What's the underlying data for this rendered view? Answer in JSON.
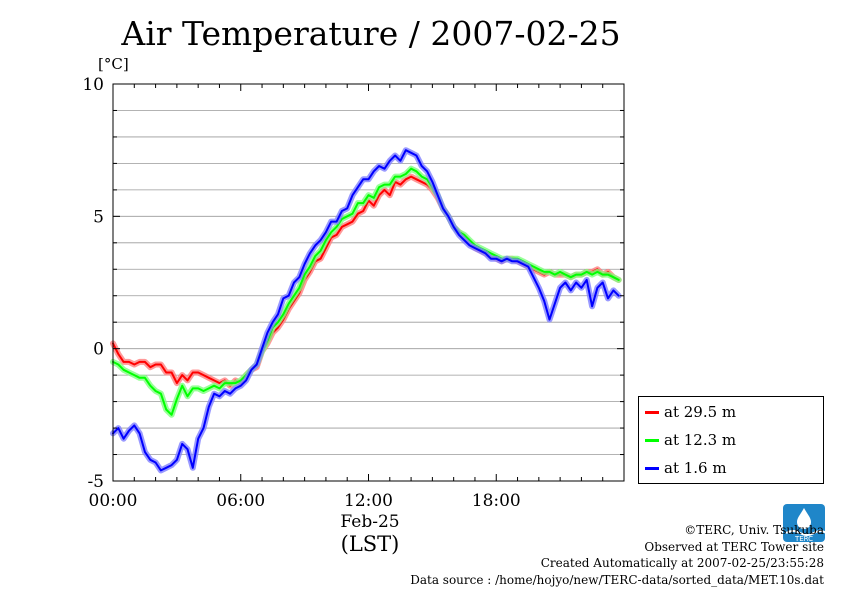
{
  "title": "Air Temperature / 2007-02-25",
  "unit": "[°C]",
  "x_date_label": "Feb-25",
  "x_zone_label": "(LST)",
  "credits": {
    "copyright": "©TERC, Univ. Tsukuba",
    "site": "Observed at TERC Tower site",
    "created": "Created Automatically at 2007-02-25/23:55:28",
    "source": "Data source : /home/hojyo/new/TERC-data/sorted_data/MET.10s.dat"
  },
  "logo_text": "TERC",
  "chart_data": {
    "type": "line",
    "title": "Air Temperature / 2007-02-25",
    "ylabel": "[°C]",
    "xlabel": "Feb-25 (LST)",
    "ylim": [
      -5,
      10
    ],
    "xlim": [
      0,
      24
    ],
    "grid": true,
    "legend_position": "right-bottom-outside",
    "y_ticks": [
      {
        "value": 10,
        "label": "10"
      },
      {
        "value": 5,
        "label": "5"
      },
      {
        "value": 0,
        "label": "0"
      },
      {
        "value": -5,
        "label": "-5"
      }
    ],
    "x_ticks": [
      {
        "value": 0,
        "label": "00:00"
      },
      {
        "value": 6,
        "label": "06:00"
      },
      {
        "value": 12,
        "label": "12:00"
      },
      {
        "value": 18,
        "label": "18:00"
      }
    ],
    "series": [
      {
        "name": "at 29.5 m",
        "color": "#ff0000",
        "x": [
          0.0,
          0.25,
          0.5,
          0.75,
          1.0,
          1.25,
          1.5,
          1.75,
          2.0,
          2.25,
          2.5,
          2.75,
          3.0,
          3.25,
          3.5,
          3.75,
          4.0,
          4.25,
          4.5,
          4.75,
          5.0,
          5.25,
          5.5,
          5.75,
          6.0,
          6.25,
          6.5,
          6.75,
          7.0,
          7.25,
          7.5,
          7.75,
          8.0,
          8.25,
          8.5,
          8.75,
          9.0,
          9.25,
          9.5,
          9.75,
          10.0,
          10.25,
          10.5,
          10.75,
          11.0,
          11.25,
          11.5,
          11.75,
          12.0,
          12.25,
          12.5,
          12.75,
          13.0,
          13.25,
          13.5,
          13.75,
          14.0,
          14.25,
          14.5,
          14.75,
          15.0,
          15.25,
          15.5,
          15.75,
          16.0,
          16.25,
          16.5,
          16.75,
          17.0,
          17.25,
          17.5,
          17.75,
          18.0,
          18.25,
          18.5,
          18.75,
          19.0,
          19.25,
          19.5,
          19.75,
          20.0,
          20.25,
          20.5,
          20.75,
          21.0,
          21.25,
          21.5,
          21.75,
          22.0,
          22.25,
          22.5,
          22.75,
          23.0,
          23.25,
          23.5,
          23.75
        ],
        "values": [
          0.2,
          -0.2,
          -0.5,
          -0.5,
          -0.6,
          -0.5,
          -0.5,
          -0.7,
          -0.6,
          -0.6,
          -0.9,
          -0.9,
          -1.3,
          -1.0,
          -1.2,
          -0.9,
          -0.9,
          -1.0,
          -1.1,
          -1.2,
          -1.3,
          -1.2,
          -1.4,
          -1.2,
          -1.3,
          -1.0,
          -0.8,
          -0.7,
          -0.1,
          0.2,
          0.6,
          0.8,
          1.1,
          1.5,
          1.8,
          2.1,
          2.6,
          2.9,
          3.3,
          3.4,
          3.8,
          4.2,
          4.3,
          4.6,
          4.7,
          4.8,
          5.1,
          5.2,
          5.6,
          5.4,
          5.8,
          6.0,
          5.8,
          6.3,
          6.2,
          6.4,
          6.5,
          6.4,
          6.3,
          6.2,
          6.0,
          5.7,
          5.3,
          5.0,
          4.6,
          4.4,
          4.2,
          4.0,
          3.8,
          3.7,
          3.6,
          3.5,
          3.4,
          3.3,
          3.4,
          3.4,
          3.3,
          3.2,
          3.1,
          3.0,
          2.9,
          2.8,
          2.9,
          2.8,
          2.8,
          2.8,
          2.7,
          2.8,
          2.8,
          2.9,
          2.9,
          3.0,
          2.8,
          2.9,
          2.7,
          2.6
        ]
      },
      {
        "name": "at 12.3 m",
        "color": "#00ff00",
        "x": [
          0.0,
          0.25,
          0.5,
          0.75,
          1.0,
          1.25,
          1.5,
          1.75,
          2.0,
          2.25,
          2.5,
          2.75,
          3.0,
          3.25,
          3.5,
          3.75,
          4.0,
          4.25,
          4.5,
          4.75,
          5.0,
          5.25,
          5.5,
          5.75,
          6.0,
          6.25,
          6.5,
          6.75,
          7.0,
          7.25,
          7.5,
          7.75,
          8.0,
          8.25,
          8.5,
          8.75,
          9.0,
          9.25,
          9.5,
          9.75,
          10.0,
          10.25,
          10.5,
          10.75,
          11.0,
          11.25,
          11.5,
          11.75,
          12.0,
          12.25,
          12.5,
          12.75,
          13.0,
          13.25,
          13.5,
          13.75,
          14.0,
          14.25,
          14.5,
          14.75,
          15.0,
          15.25,
          15.5,
          15.75,
          16.0,
          16.25,
          16.5,
          16.75,
          17.0,
          17.25,
          17.5,
          17.75,
          18.0,
          18.25,
          18.5,
          18.75,
          19.0,
          19.25,
          19.5,
          19.75,
          20.0,
          20.25,
          20.5,
          20.75,
          21.0,
          21.25,
          21.5,
          21.75,
          22.0,
          22.25,
          22.5,
          22.75,
          23.0,
          23.25,
          23.5,
          23.75
        ],
        "values": [
          -0.5,
          -0.6,
          -0.8,
          -0.9,
          -1.0,
          -1.1,
          -1.1,
          -1.4,
          -1.6,
          -1.7,
          -2.3,
          -2.5,
          -1.9,
          -1.4,
          -1.8,
          -1.5,
          -1.5,
          -1.6,
          -1.5,
          -1.4,
          -1.5,
          -1.3,
          -1.3,
          -1.3,
          -1.2,
          -1.0,
          -0.8,
          -0.6,
          -0.1,
          0.3,
          0.8,
          1.0,
          1.3,
          1.7,
          2.0,
          2.3,
          2.8,
          3.1,
          3.5,
          3.7,
          4.1,
          4.4,
          4.6,
          4.9,
          5.0,
          5.1,
          5.5,
          5.5,
          5.8,
          5.7,
          6.1,
          6.2,
          6.2,
          6.5,
          6.5,
          6.6,
          6.8,
          6.7,
          6.5,
          6.4,
          6.1,
          5.8,
          5.3,
          5.0,
          4.6,
          4.4,
          4.3,
          4.1,
          3.9,
          3.8,
          3.7,
          3.6,
          3.5,
          3.4,
          3.4,
          3.4,
          3.4,
          3.3,
          3.2,
          3.1,
          3.0,
          2.9,
          2.9,
          2.8,
          2.9,
          2.8,
          2.7,
          2.8,
          2.8,
          2.9,
          2.8,
          2.9,
          2.8,
          2.8,
          2.7,
          2.6
        ]
      },
      {
        "name": "at 1.6 m",
        "color": "#0000ff",
        "x": [
          0.0,
          0.25,
          0.5,
          0.75,
          1.0,
          1.25,
          1.5,
          1.75,
          2.0,
          2.25,
          2.5,
          2.75,
          3.0,
          3.25,
          3.5,
          3.75,
          4.0,
          4.25,
          4.5,
          4.75,
          5.0,
          5.25,
          5.5,
          5.75,
          6.0,
          6.25,
          6.5,
          6.75,
          7.0,
          7.25,
          7.5,
          7.75,
          8.0,
          8.25,
          8.5,
          8.75,
          9.0,
          9.25,
          9.5,
          9.75,
          10.0,
          10.25,
          10.5,
          10.75,
          11.0,
          11.25,
          11.5,
          11.75,
          12.0,
          12.25,
          12.5,
          12.75,
          13.0,
          13.25,
          13.5,
          13.75,
          14.0,
          14.25,
          14.5,
          14.75,
          15.0,
          15.25,
          15.5,
          15.75,
          16.0,
          16.25,
          16.5,
          16.75,
          17.0,
          17.25,
          17.5,
          17.75,
          18.0,
          18.25,
          18.5,
          18.75,
          19.0,
          19.25,
          19.5,
          19.75,
          20.0,
          20.25,
          20.5,
          20.75,
          21.0,
          21.25,
          21.5,
          21.75,
          22.0,
          22.25,
          22.5,
          22.75,
          23.0,
          23.25,
          23.5,
          23.75
        ],
        "values": [
          -3.2,
          -3.0,
          -3.4,
          -3.1,
          -2.9,
          -3.2,
          -3.9,
          -4.2,
          -4.3,
          -4.6,
          -4.5,
          -4.4,
          -4.2,
          -3.6,
          -3.8,
          -4.5,
          -3.4,
          -3.0,
          -2.2,
          -1.7,
          -1.8,
          -1.6,
          -1.7,
          -1.5,
          -1.4,
          -1.2,
          -0.8,
          -0.6,
          0.0,
          0.6,
          1.0,
          1.3,
          1.9,
          2.0,
          2.5,
          2.7,
          3.2,
          3.6,
          3.9,
          4.1,
          4.4,
          4.8,
          4.8,
          5.2,
          5.3,
          5.8,
          6.1,
          6.4,
          6.4,
          6.7,
          6.9,
          6.8,
          7.1,
          7.3,
          7.1,
          7.5,
          7.4,
          7.3,
          6.9,
          6.7,
          6.3,
          5.8,
          5.3,
          5.0,
          4.6,
          4.3,
          4.1,
          3.9,
          3.8,
          3.7,
          3.6,
          3.4,
          3.4,
          3.3,
          3.4,
          3.3,
          3.3,
          3.2,
          3.1,
          2.7,
          2.3,
          1.8,
          1.1,
          1.7,
          2.3,
          2.5,
          2.2,
          2.5,
          2.3,
          2.6,
          1.6,
          2.3,
          2.5,
          1.9,
          2.2,
          2.0
        ]
      }
    ]
  }
}
